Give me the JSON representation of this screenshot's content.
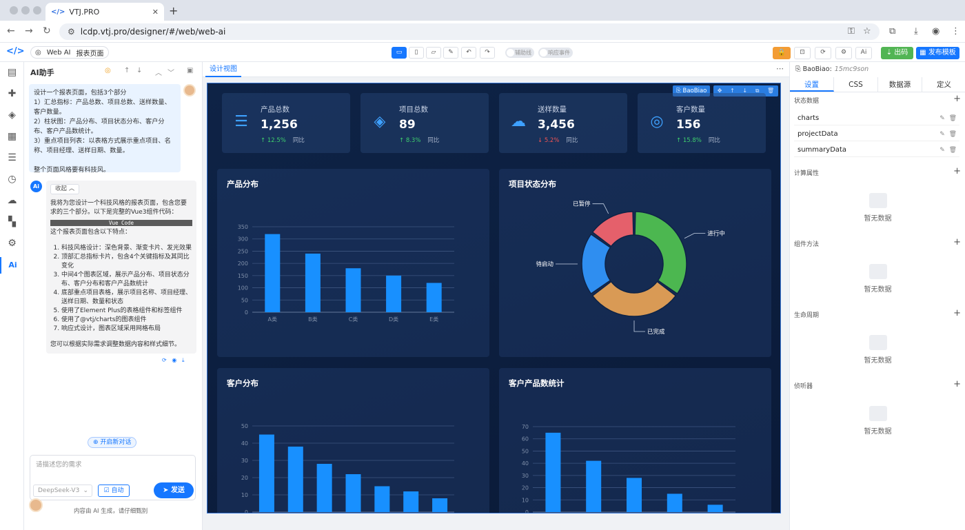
{
  "browser": {
    "tab_title": "VTJ.PRO",
    "url": "lcdp.vtj.pro/designer/#/web/web-ai"
  },
  "toolbar": {
    "crumb_app": "Web AI",
    "crumb_page": "报表页面",
    "toggle_guides": "辅助线",
    "toggle_events": "响应事件",
    "publish_label": "出码",
    "template_label": "发布模板"
  },
  "ai": {
    "title": "AI助手",
    "user_message": "设计一个报表页面，包括3个部分\n1）汇总指标：产品总数、项目总数、送样数量、客户数量。\n2）柱状图：产品分布、项目状态分布、客户分布、客户产品数统计。\n3）重点项目列表：以表格方式展示重点项目、名称、项目经理、送样日期、数量。\n\n整个页面风格要有科技风。",
    "collapse_label": "收起",
    "reply_intro": "我将为您设计一个科技风格的报表页面，包含您要求的三个部分。以下是完整的Vue3组件代码：",
    "code_label": "Vue Code",
    "reply_sub": "这个报表页面包含以下特点：",
    "features": [
      "科技风格设计：深色背景、渐变卡片、发光效果",
      "顶部汇总指标卡片，包含4个关键指标及其同比变化",
      "中间4个图表区域，展示产品分布、项目状态分布、客户分布和客户产品数统计",
      "底部重点项目表格，展示项目名称、项目经理、送样日期、数量和状态",
      "使用了Element Plus的表格组件和标签组件",
      "使用了@vtj/charts的图表组件",
      "响应式设计，图表区域采用网格布局"
    ],
    "reply_outro": "您可以根据实际需求调整数据内容和样式细节。",
    "new_chat_label": "开启新对话",
    "input_placeholder": "请描述您的需求",
    "model": "DeepSeek-V3",
    "auto_label": "自动",
    "send_label": "发送",
    "disclaimer": "内容由 AI 生成，请仔细甄别"
  },
  "canvas": {
    "tab": "设计视图",
    "selected_component": "BaoBiao"
  },
  "dashboard": {
    "cards": [
      {
        "label": "产品总数",
        "value": "1,256",
        "trend": "↑ 12.5%",
        "dir": "up",
        "compare": "同比",
        "icon": "database-icon"
      },
      {
        "label": "项目总数",
        "value": "89",
        "trend": "↑ 8.3%",
        "dir": "up",
        "compare": "同比",
        "icon": "layers-icon"
      },
      {
        "label": "送样数量",
        "value": "3,456",
        "trend": "↓ 5.2%",
        "dir": "down",
        "compare": "同比",
        "icon": "cloud-upload-icon"
      },
      {
        "label": "客户数量",
        "value": "156",
        "trend": "↑ 15.8%",
        "dir": "up",
        "compare": "同比",
        "icon": "user-icon"
      }
    ],
    "panel_titles": [
      "产品分布",
      "项目状态分布",
      "客户分布",
      "客户产品数统计"
    ]
  },
  "chart_data": [
    {
      "type": "bar",
      "title": "产品分布",
      "categories": [
        "A类",
        "B类",
        "C类",
        "D类",
        "E类"
      ],
      "values": [
        320,
        240,
        180,
        150,
        120
      ],
      "ylim": [
        0,
        350
      ],
      "yticks": [
        "0",
        "50",
        "100",
        "150",
        "200",
        "250",
        "300",
        "350"
      ],
      "color": "#1890ff"
    },
    {
      "type": "pie",
      "title": "项目状态分布",
      "categories": [
        "进行中",
        "已完成",
        "待启动",
        "已暂停"
      ],
      "values": [
        35,
        30,
        20,
        15
      ],
      "colors": [
        "#4cb750",
        "#d99a55",
        "#2f8ef0",
        "#e5606b"
      ]
    },
    {
      "type": "bar",
      "title": "客户分布",
      "categories": [
        "",
        "",
        "",
        "",
        "",
        "",
        ""
      ],
      "values": [
        45,
        38,
        28,
        22,
        15,
        12,
        8
      ],
      "ylim": [
        0,
        50
      ],
      "yticks": [
        "0",
        "10",
        "20",
        "30",
        "40",
        "50"
      ],
      "color": "#1890ff"
    },
    {
      "type": "bar",
      "title": "客户产品数统计",
      "categories": [
        "",
        "",
        "",
        "",
        ""
      ],
      "values": [
        65,
        42,
        28,
        15,
        6
      ],
      "ylim": [
        0,
        70
      ],
      "yticks": [
        "0",
        "10",
        "20",
        "30",
        "40",
        "50",
        "60",
        "70"
      ],
      "color": "#1890ff"
    }
  ],
  "props": {
    "component": "BaoBiao:",
    "component_id": "15mc9son",
    "tabs": [
      "设置",
      "CSS",
      "数据源",
      "定义"
    ],
    "sections": [
      "状态数据",
      "计算属性",
      "组件方法",
      "生命周期",
      "侦听器"
    ],
    "state_items": [
      "charts",
      "projectData",
      "summaryData"
    ],
    "empty_text": "暂无数据"
  }
}
